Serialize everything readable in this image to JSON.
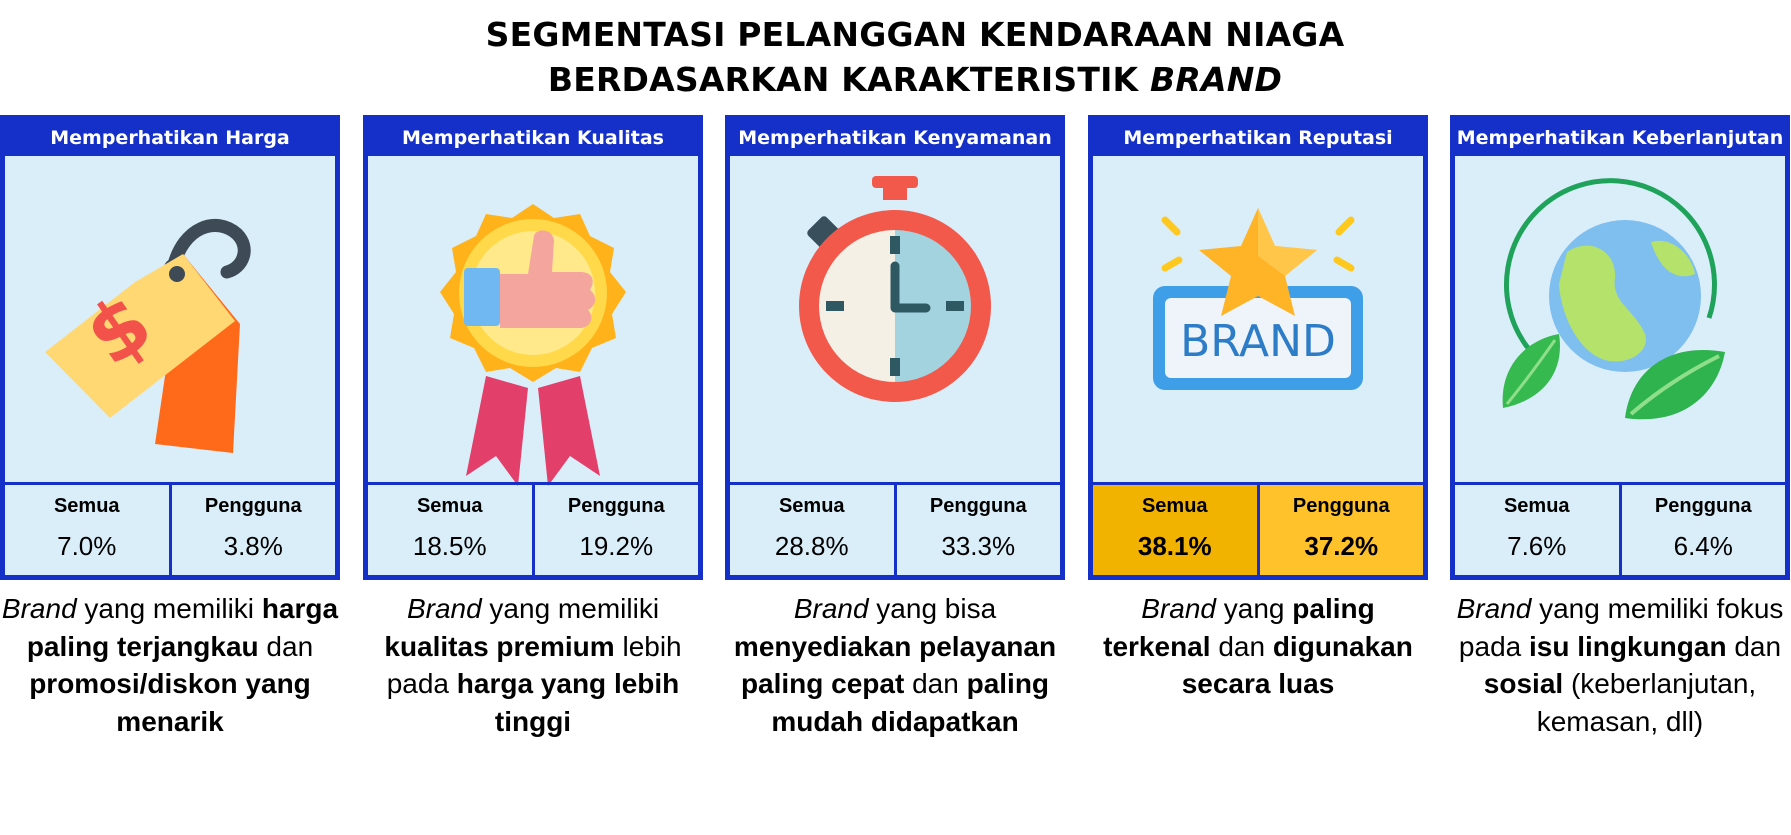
{
  "title": {
    "line1": "SEGMENTASI PELANGGAN KENDARAAN NIAGA",
    "line2_prefix": "BERDASARKAN KARAKTERISTIK ",
    "line2_emph": "BRAND"
  },
  "colors": {
    "border": "#1430c8",
    "panel": "#daeefa",
    "highlight": "#ffc22a"
  },
  "stat_labels": {
    "all": "Semua",
    "users": "Pengguna"
  },
  "cards": [
    {
      "header": "Memperhatikan Harga",
      "icon": "price-tag-icon",
      "semua": "7.0%",
      "pengguna": "3.8%",
      "desc": [
        {
          "t": "Brand",
          "s": "i"
        },
        {
          "t": " yang memiliki "
        },
        {
          "t": "harga paling terjangkau",
          "s": "b"
        },
        {
          "t": " dan "
        },
        {
          "t": "promosi/diskon yang menarik",
          "s": "b"
        }
      ]
    },
    {
      "header": "Memperhatikan Kualitas",
      "icon": "quality-badge-icon",
      "semua": "18.5%",
      "pengguna": "19.2%",
      "desc": [
        {
          "t": "Brand",
          "s": "i"
        },
        {
          "t": " yang memiliki "
        },
        {
          "t": "kualitas premium",
          "s": "b"
        },
        {
          "t": " lebih pada "
        },
        {
          "t": "harga yang lebih tinggi",
          "s": "b"
        }
      ]
    },
    {
      "header": "Memperhatikan Kenyamanan",
      "icon": "stopwatch-icon",
      "semua": "28.8%",
      "pengguna": "33.3%",
      "desc": [
        {
          "t": "Brand",
          "s": "i"
        },
        {
          "t": " yang bisa "
        },
        {
          "t": "menyediakan pelayanan paling cepat",
          "s": "b"
        },
        {
          "t": " dan "
        },
        {
          "t": "paling mudah didapatkan",
          "s": "b"
        }
      ]
    },
    {
      "header": "Memperhatikan Reputasi",
      "icon": "brand-star-icon",
      "icon_text": "BRAND",
      "semua": "38.1%",
      "pengguna": "37.2%",
      "highlight": true,
      "desc": [
        {
          "t": "Brand",
          "s": "i"
        },
        {
          "t": " yang "
        },
        {
          "t": "paling terkenal",
          "s": "b"
        },
        {
          "t": " dan "
        },
        {
          "t": "digunakan secara luas",
          "s": "b"
        }
      ]
    },
    {
      "header": "Memperhatikan Keberlanjutan",
      "icon": "eco-globe-icon",
      "semua": "7.6%",
      "pengguna": "6.4%",
      "desc": [
        {
          "t": "Brand",
          "s": "i"
        },
        {
          "t": " yang memiliki fokus pada "
        },
        {
          "t": "isu lingkungan",
          "s": "b"
        },
        {
          "t": " dan "
        },
        {
          "t": "sosial",
          "s": "b"
        },
        {
          "t": " (keberlanjutan, kemasan, dll)"
        }
      ]
    }
  ]
}
